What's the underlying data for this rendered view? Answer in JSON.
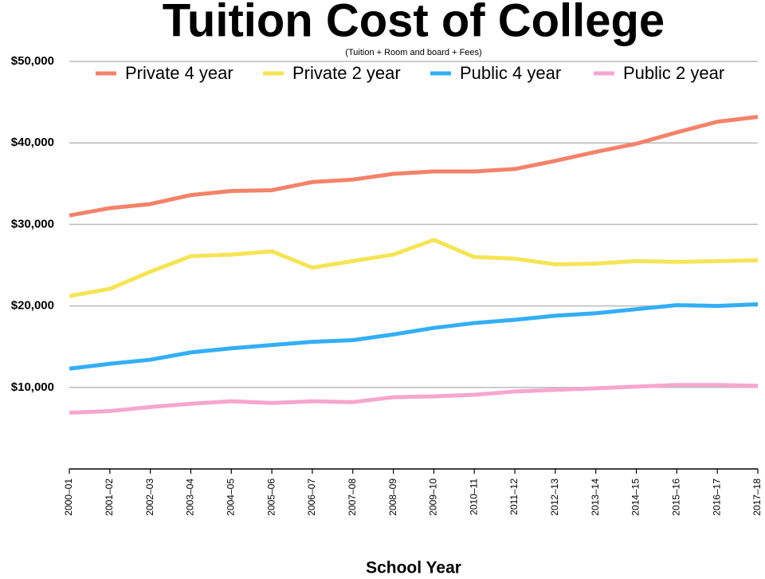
{
  "chart_data": {
    "type": "line",
    "title": "Tuition Cost of College",
    "subtitle": "(Tuition + Room and board + Fees)",
    "x_label": "School Year",
    "categories": [
      "2000–01",
      "2001–02",
      "2002–03",
      "2003–04",
      "2004–05",
      "2005–06",
      "2006–07",
      "2007–08",
      "2008–09",
      "2009–10",
      "2010–11",
      "2011–12",
      "2012–13",
      "2013–14",
      "2014–15",
      "2015–16",
      "2016–17",
      "2017–18"
    ],
    "series": [
      {
        "name": "Private 4 year",
        "color": "#f4826a",
        "values": [
          31100,
          32000,
          32500,
          33600,
          34100,
          34200,
          35200,
          35500,
          36200,
          36500,
          36500,
          36800,
          37800,
          38900,
          39900,
          41300,
          42600,
          43200
        ]
      },
      {
        "name": "Private 2 year",
        "color": "#f5e455",
        "values": [
          21200,
          22100,
          24200,
          26100,
          26300,
          26700,
          24700,
          25500,
          26300,
          28100,
          26000,
          25800,
          25100,
          25200,
          25500,
          25400,
          25500,
          25600
        ]
      },
      {
        "name": "Public 4 year",
        "color": "#34aef5",
        "values": [
          12300,
          12900,
          13400,
          14300,
          14800,
          15200,
          15600,
          15800,
          16500,
          17300,
          17900,
          18300,
          18800,
          19100,
          19600,
          20100,
          20000,
          20200
        ]
      },
      {
        "name": "Public 2 year",
        "color": "#f7a6d0",
        "values": [
          6900,
          7100,
          7600,
          8000,
          8300,
          8100,
          8300,
          8200,
          8800,
          8900,
          9100,
          9500,
          9700,
          9900,
          10100,
          10300,
          10300,
          10200
        ]
      }
    ],
    "ylim": [
      0,
      50000
    ],
    "yticks": [
      {
        "value": 10000,
        "label": "$10,000"
      },
      {
        "value": 20000,
        "label": "$20,000"
      },
      {
        "value": 30000,
        "label": "$30,000"
      },
      {
        "value": 40000,
        "label": "$40,000"
      },
      {
        "value": 50000,
        "label": "$50,000"
      }
    ],
    "grid": true,
    "legend": "top"
  }
}
